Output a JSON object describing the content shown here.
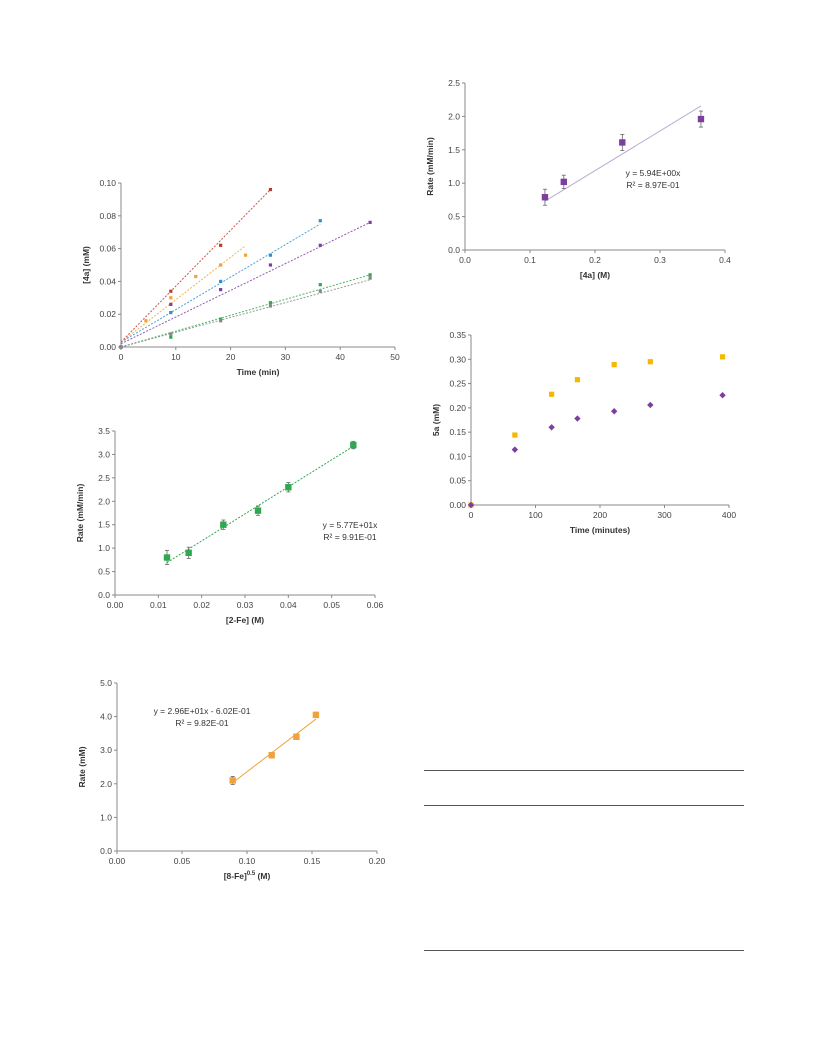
{
  "chart_data": [
    {
      "type": "scatter",
      "xlabel": "Time (min)",
      "ylabel": "[4a] (mM)",
      "xlim": [
        0,
        55
      ],
      "ylim": [
        0,
        0.1
      ],
      "xticks": [
        "0",
        "10",
        "20",
        "30",
        "40",
        "50"
      ],
      "yticks": [
        "0.00",
        "0.02",
        "0.04",
        "0.06",
        "0.08",
        "0.10"
      ],
      "grid": false,
      "series": [
        {
          "color": "#c0392b",
          "x": [
            0,
            10,
            20,
            30
          ],
          "y": [
            0.0,
            0.034,
            0.062,
            0.096
          ],
          "fit": {
            "slope": 0.0031,
            "intercept": 0.003,
            "x": [
              0,
              30
            ]
          }
        },
        {
          "color": "#f0a23c",
          "x": [
            0,
            5,
            10,
            15,
            20,
            25
          ],
          "y": [
            0.0,
            0.016,
            0.03,
            0.043,
            0.05,
            0.056
          ],
          "fit": {
            "slope": 0.00235,
            "intercept": 0.003,
            "x": [
              0,
              25
            ]
          }
        },
        {
          "color": "#2f8fd0",
          "x": [
            0,
            10,
            20,
            30,
            40
          ],
          "y": [
            0.0,
            0.021,
            0.04,
            0.056,
            0.077
          ],
          "fit": {
            "slope": 0.0018,
            "intercept": 0.003,
            "x": [
              0,
              40
            ]
          }
        },
        {
          "color": "#7c3fa0",
          "x": [
            0,
            10,
            20,
            30,
            40,
            50
          ],
          "y": [
            0.0,
            0.026,
            0.035,
            0.05,
            0.062,
            0.076
          ],
          "fit": {
            "slope": 0.00148,
            "intercept": 0.002,
            "x": [
              0,
              50
            ]
          }
        },
        {
          "color": "#2fa84f",
          "x": [
            0,
            10,
            20,
            30,
            40,
            50
          ],
          "y": [
            0.0,
            0.006,
            0.017,
            0.027,
            0.038,
            0.044
          ],
          "fit": {
            "slope": 0.00088,
            "intercept": 0.0,
            "x": [
              0,
              50
            ]
          }
        },
        {
          "color": "#888888",
          "x": [
            0,
            10,
            20,
            30,
            40,
            50
          ],
          "y": [
            0.0,
            0.008,
            0.016,
            0.025,
            0.034,
            0.042
          ],
          "fit": {
            "slope": 0.00082,
            "intercept": 0.0,
            "x": [
              0,
              50
            ]
          }
        }
      ]
    },
    {
      "type": "scatter",
      "xlabel": "[2-Fe] (M)",
      "ylabel": "Rate (mM/min)",
      "xlim": [
        0,
        0.06
      ],
      "ylim": [
        0,
        3.5
      ],
      "xticks": [
        "0.00",
        "0.01",
        "0.02",
        "0.03",
        "0.04",
        "0.05",
        "0.06"
      ],
      "yticks": [
        "0.0",
        "0.5",
        "1.0",
        "1.5",
        "2.0",
        "2.5",
        "3.0",
        "3.5"
      ],
      "grid": false,
      "equation": "y = 5.77E+01x",
      "r2": "R² = 9.91E-01",
      "series": [
        {
          "color": "#2fa84f",
          "x": [
            0.012,
            0.017,
            0.025,
            0.033,
            0.04,
            0.055
          ],
          "y": [
            0.8,
            0.9,
            1.5,
            1.8,
            2.3,
            3.2
          ],
          "err": [
            0.15,
            0.12,
            0.1,
            0.1,
            0.1,
            0.08
          ],
          "fit": {
            "slope": 57.7,
            "intercept": 0,
            "x": [
              0.012,
              0.055
            ]
          }
        }
      ]
    },
    {
      "type": "scatter",
      "xlabel": "[8-Fe]0.5 (M)",
      "ylabel": "Rate (mM)",
      "xlim": [
        0,
        0.2
      ],
      "ylim": [
        0,
        5.0
      ],
      "xticks": [
        "0.00",
        "0.05",
        "0.10",
        "0.15",
        "0.20"
      ],
      "yticks": [
        "0.0",
        "1.0",
        "2.0",
        "3.0",
        "4.0",
        "5.0"
      ],
      "grid": false,
      "equation": "y = 2.96E+01x - 6.02E-01",
      "r2": "R² = 9.82E-01",
      "series": [
        {
          "color": "#f0a23c",
          "x": [
            0.089,
            0.119,
            0.138,
            0.153
          ],
          "y": [
            2.1,
            2.85,
            3.4,
            4.05
          ],
          "err": [
            0.12,
            0.08,
            0.08,
            0.08
          ],
          "fit": {
            "slope": 29.6,
            "intercept": -0.602,
            "x": [
              0.089,
              0.153
            ]
          }
        }
      ]
    },
    {
      "type": "scatter",
      "xlabel": "[4a] (M)",
      "ylabel": "Rate (mM/min)",
      "xlim": [
        0,
        0.4
      ],
      "ylim": [
        0,
        2.5
      ],
      "xticks": [
        "0.0",
        "0.1",
        "0.2",
        "0.3",
        "0.4"
      ],
      "yticks": [
        "0.0",
        "0.5",
        "1.0",
        "1.5",
        "2.0",
        "2.5"
      ],
      "grid": false,
      "equation": "y = 5.94E+00x",
      "r2": "R² = 8.97E-01",
      "series": [
        {
          "color": "#7c3fa0",
          "x": [
            0.123,
            0.152,
            0.242,
            0.363
          ],
          "y": [
            0.79,
            1.02,
            1.61,
            1.96
          ],
          "err": [
            0.12,
            0.1,
            0.12,
            0.12
          ],
          "fit": {
            "slope": 5.94,
            "intercept": 0,
            "x": [
              0.123,
              0.363
            ]
          }
        }
      ]
    },
    {
      "type": "scatter",
      "xlabel": "Time (minutes)",
      "ylabel": "5a (mM)",
      "xlim": [
        0,
        400
      ],
      "ylim": [
        0,
        0.35
      ],
      "xticks": [
        "0",
        "100",
        "200",
        "300",
        "400"
      ],
      "yticks": [
        "0.00",
        "0.05",
        "0.10",
        "0.15",
        "0.20",
        "0.25",
        "0.30",
        "0.35"
      ],
      "grid": false,
      "series": [
        {
          "color": "#f5b800",
          "marker": "square",
          "x": [
            0,
            68,
            125,
            165,
            222,
            278,
            390
          ],
          "y": [
            0.0,
            0.144,
            0.228,
            0.258,
            0.289,
            0.295,
            0.305
          ]
        },
        {
          "color": "#7c3fa0",
          "marker": "diamond",
          "x": [
            0,
            68,
            125,
            165,
            222,
            278,
            390
          ],
          "y": [
            0.0,
            0.114,
            0.16,
            0.178,
            0.193,
            0.206,
            0.226
          ]
        }
      ]
    }
  ]
}
